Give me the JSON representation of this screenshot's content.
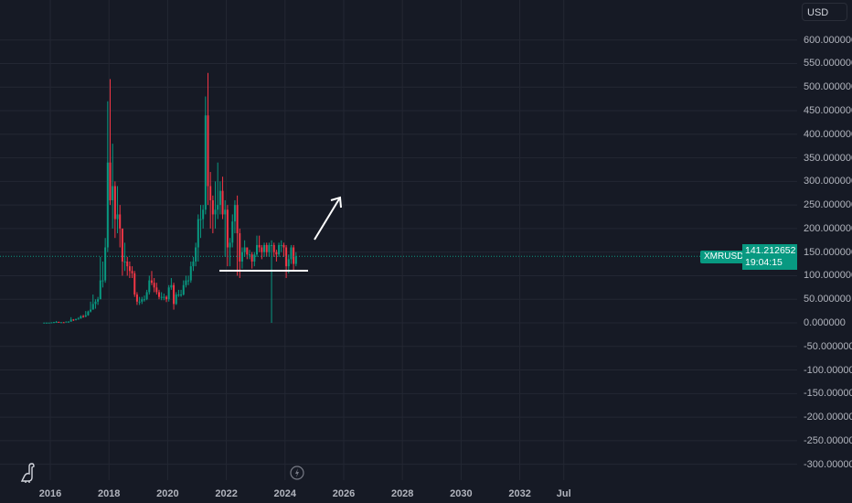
{
  "currency_button": "USD",
  "symbol": "XMRUSD",
  "last_price": "141.212652",
  "countdown": "19:04:15",
  "colors": {
    "up": "#089981",
    "down": "#f23645",
    "background": "#161a25",
    "grid": "#232733",
    "price_line": "#089981"
  },
  "icons": [
    "tradingview-dino-icon",
    "lightning-icon"
  ],
  "chart_data": {
    "type": "candlestick",
    "title": "",
    "interval": "monthly (approximate)",
    "y_ticks": [
      "600.000000",
      "550.000000",
      "500.000000",
      "450.000000",
      "400.000000",
      "350.000000",
      "300.000000",
      "250.000000",
      "200.000000",
      "150.000000",
      "100.000000",
      "50.000000",
      "0.000000",
      "-50.000000",
      "-100.000000",
      "-150.000000",
      "-200.000000",
      "-250.000000",
      "-300.000000"
    ],
    "x_ticks": [
      "2016",
      "2018",
      "2020",
      "2022",
      "2024",
      "2026",
      "2028",
      "2030",
      "2032",
      "Jul"
    ],
    "ylim": [
      -300,
      600
    ],
    "xlim": [
      "2015-08",
      "2033-06"
    ],
    "grid": true,
    "start": "2015-10",
    "ohlc": [
      [
        0.5,
        0.6,
        0.4,
        0.5
      ],
      [
        0.5,
        0.6,
        0.4,
        0.5
      ],
      [
        0.5,
        0.6,
        0.4,
        0.5
      ],
      [
        0.5,
        1.2,
        0.4,
        1
      ],
      [
        1,
        2,
        0.9,
        1.5
      ],
      [
        1.5,
        4,
        1.4,
        2
      ],
      [
        2,
        2.5,
        1,
        1.2
      ],
      [
        1.2,
        1.5,
        1,
        1.3
      ],
      [
        1.3,
        1.6,
        1,
        1.1
      ],
      [
        1.1,
        3,
        1,
        2.5
      ],
      [
        2.5,
        3.5,
        2,
        2.5
      ],
      [
        2.5,
        12,
        2.5,
        7
      ],
      [
        7,
        8,
        4,
        6
      ],
      [
        6,
        9,
        5,
        8
      ],
      [
        8,
        12,
        7,
        9
      ],
      [
        9,
        16,
        9,
        14
      ],
      [
        14,
        17,
        11,
        13
      ],
      [
        13,
        25,
        12,
        16
      ],
      [
        16,
        26,
        15,
        24
      ],
      [
        24,
        45,
        22,
        28
      ],
      [
        28,
        60,
        28,
        40
      ],
      [
        40,
        50,
        30,
        45
      ],
      [
        45,
        55,
        38,
        50
      ],
      [
        50,
        140,
        50,
        90
      ],
      [
        90,
        130,
        75,
        90
      ],
      [
        90,
        180,
        85,
        160
      ],
      [
        160,
        470,
        150,
        340
      ],
      [
        340,
        517,
        250,
        260
      ],
      [
        260,
        380,
        200,
        290
      ],
      [
        290,
        300,
        180,
        220
      ],
      [
        220,
        290,
        190,
        230
      ],
      [
        230,
        250,
        160,
        200
      ],
      [
        200,
        200,
        100,
        130
      ],
      [
        130,
        170,
        110,
        130
      ],
      [
        130,
        140,
        100,
        120
      ],
      [
        120,
        130,
        95,
        110
      ],
      [
        110,
        120,
        95,
        105
      ],
      [
        105,
        110,
        55,
        60
      ],
      [
        60,
        65,
        38,
        45
      ],
      [
        45,
        55,
        38,
        45
      ],
      [
        45,
        55,
        40,
        50
      ],
      [
        50,
        58,
        45,
        50
      ],
      [
        50,
        70,
        48,
        65
      ],
      [
        65,
        100,
        60,
        90
      ],
      [
        90,
        110,
        80,
        85
      ],
      [
        85,
        95,
        65,
        75
      ],
      [
        75,
        85,
        60,
        65
      ],
      [
        65,
        70,
        50,
        55
      ],
      [
        55,
        65,
        48,
        55
      ],
      [
        55,
        62,
        48,
        55
      ],
      [
        55,
        58,
        44,
        50
      ],
      [
        50,
        80,
        45,
        75
      ],
      [
        75,
        95,
        70,
        80
      ],
      [
        80,
        85,
        28,
        40
      ],
      [
        40,
        65,
        38,
        60
      ],
      [
        60,
        70,
        55,
        60
      ],
      [
        60,
        70,
        55,
        60
      ],
      [
        60,
        90,
        58,
        80
      ],
      [
        80,
        100,
        75,
        90
      ],
      [
        90,
        100,
        80,
        90
      ],
      [
        90,
        130,
        85,
        120
      ],
      [
        120,
        140,
        110,
        130
      ],
      [
        130,
        170,
        120,
        160
      ],
      [
        160,
        230,
        130,
        220
      ],
      [
        220,
        250,
        180,
        220
      ],
      [
        220,
        250,
        200,
        240
      ],
      [
        240,
        480,
        230,
        440
      ],
      [
        440,
        530,
        250,
        290
      ],
      [
        290,
        320,
        200,
        260
      ],
      [
        260,
        270,
        190,
        230
      ],
      [
        230,
        300,
        200,
        240
      ],
      [
        240,
        340,
        220,
        250
      ],
      [
        250,
        300,
        230,
        280
      ],
      [
        280,
        310,
        220,
        230
      ],
      [
        230,
        260,
        140,
        240
      ],
      [
        240,
        250,
        120,
        160
      ],
      [
        160,
        180,
        120,
        170
      ],
      [
        170,
        230,
        160,
        215
      ],
      [
        215,
        260,
        190,
        250
      ],
      [
        250,
        270,
        100,
        190
      ],
      [
        190,
        200,
        95,
        130
      ],
      [
        130,
        160,
        115,
        150
      ],
      [
        150,
        175,
        140,
        160
      ],
      [
        160,
        160,
        135,
        145
      ],
      [
        145,
        155,
        135,
        145
      ],
      [
        145,
        150,
        115,
        130
      ],
      [
        130,
        150,
        120,
        145
      ],
      [
        145,
        185,
        140,
        165
      ],
      [
        165,
        185,
        150,
        160
      ],
      [
        160,
        165,
        135,
        150
      ],
      [
        150,
        170,
        140,
        165
      ],
      [
        165,
        170,
        140,
        150
      ],
      [
        150,
        170,
        140,
        165
      ],
      [
        165,
        175,
        0,
        165
      ],
      [
        165,
        170,
        140,
        150
      ],
      [
        150,
        155,
        130,
        145
      ],
      [
        145,
        170,
        140,
        165
      ],
      [
        165,
        175,
        150,
        165
      ],
      [
        165,
        170,
        140,
        160
      ],
      [
        160,
        165,
        95,
        120
      ],
      [
        120,
        145,
        105,
        135
      ],
      [
        135,
        165,
        125,
        160
      ],
      [
        160,
        165,
        110,
        125
      ],
      [
        125,
        150,
        120,
        141.21
      ]
    ]
  }
}
